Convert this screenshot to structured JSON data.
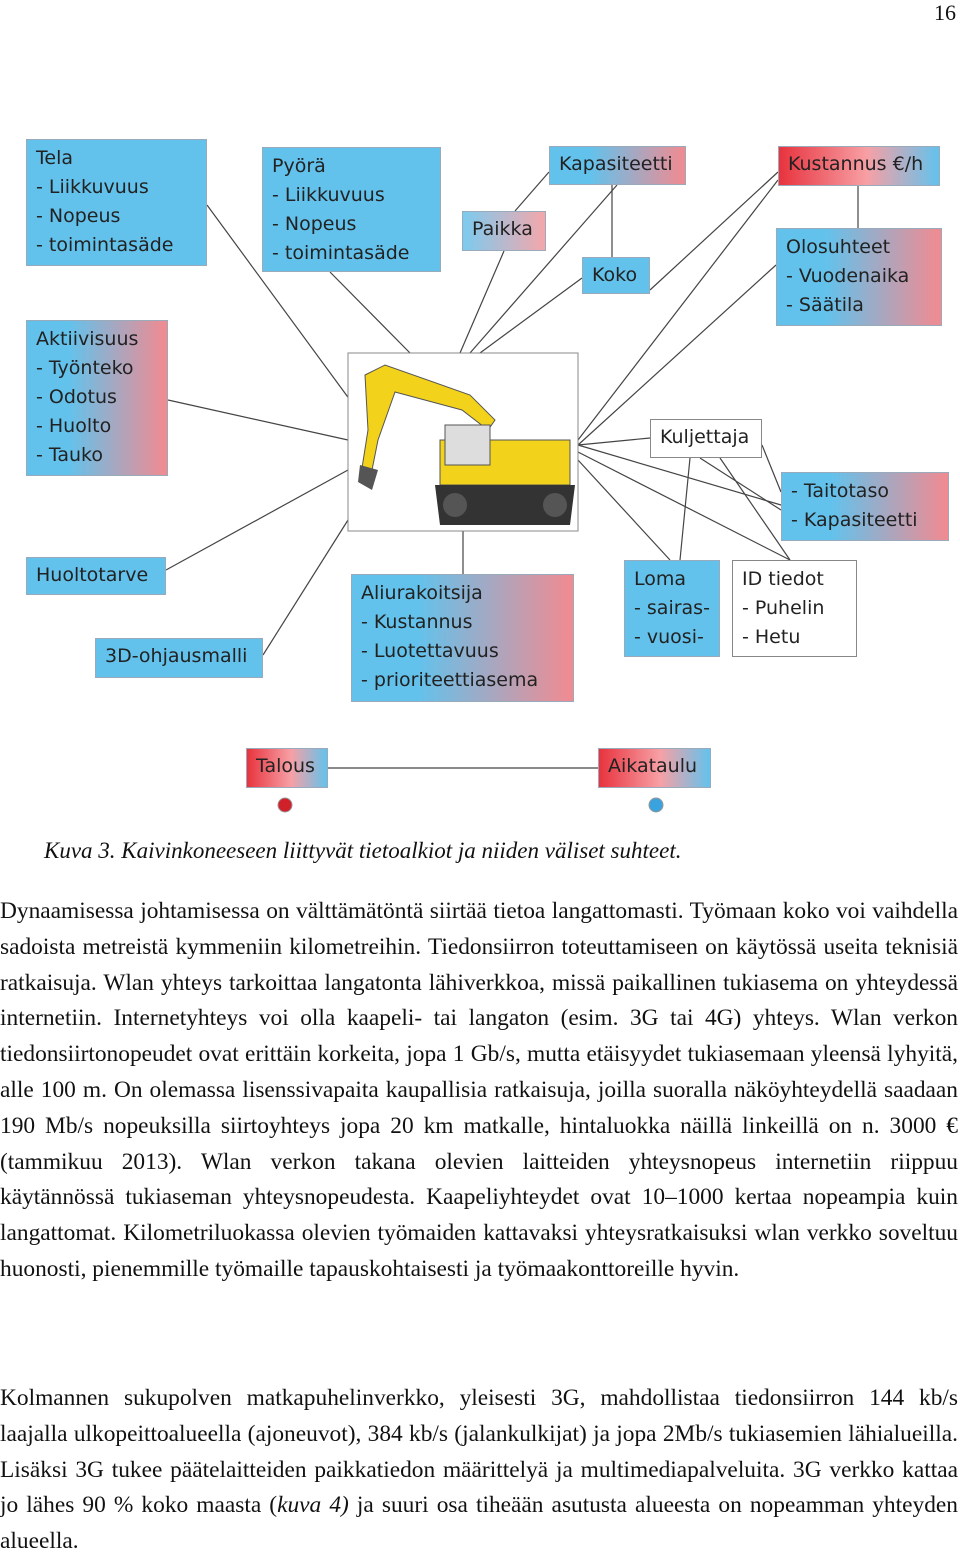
{
  "page_number": "16",
  "figure": {
    "nodes": [
      {
        "lines": [
          "Tela",
          "- Liikkuvuus",
          "- Nopeus",
          "- toimintasäde"
        ]
      },
      {
        "lines": [
          "Pyörä",
          "- Liikkuvuus",
          "- Nopeus",
          "- toimintasäde"
        ]
      },
      {
        "lines": [
          "Paikka"
        ]
      },
      {
        "lines": [
          "Kapasiteetti"
        ]
      },
      {
        "lines": [
          "Koko"
        ]
      },
      {
        "lines": [
          "Kustannus €/h"
        ]
      },
      {
        "lines": [
          "Olosuhteet",
          "- Vuodenaika",
          "- Säätila"
        ]
      },
      {
        "lines": [
          "Aktiivisuus",
          "- Työnteko",
          "- Odotus",
          "- Huolto",
          "- Tauko"
        ]
      },
      {
        "lines": [
          "Kuljettaja"
        ]
      },
      {
        "lines": [
          "- Taitotaso",
          "- Kapasiteetti"
        ]
      },
      {
        "lines": [
          "Huoltotarve"
        ]
      },
      {
        "lines": [
          "3D-ohjausmalli"
        ]
      },
      {
        "lines": [
          "Aliurakoitsija",
          "- Kustannus",
          "- Luotettavuus",
          "- prioriteettiasema"
        ]
      },
      {
        "lines": [
          "Loma",
          "- sairas-",
          "- vuosi-"
        ]
      },
      {
        "lines": [
          "ID tiedot",
          "- Puhelin",
          "- Hetu"
        ]
      }
    ],
    "legend": [
      {
        "label": "Talous"
      },
      {
        "label": "Aikataulu"
      }
    ],
    "caption": "Kuva 3. Kaivinkoneeseen liittyvät tietoalkiot ja niiden väliset suhteet."
  },
  "paragraphs": [
    {
      "text": "Dynaamisessa johtamisessa on välttämätöntä siirtää tietoa langattomasti. Työmaan koko voi vaihdella sadoista metreistä kymmeniin kilometreihin. Tiedonsiirron toteuttamiseen on käytössä useita teknisiä ratkaisuja. Wlan yhteys tarkoittaa langatonta lähiverkkoa, missä paikallinen tukiasema on yhteydessä internetiin. Internetyhteys voi olla kaapeli- tai langaton (esim. 3G tai 4G) yhteys. Wlan verkon tiedonsiirtonopeudet ovat erittäin korkeita, jopa 1 Gb/s, mutta etäisyydet tukiasemaan yleensä lyhyitä, alle 100 m. On olemassa lisenssivapaita kaupallisia ratkaisuja, joilla suoralla näköyhteydellä saadaan 190 Mb/s nopeuksilla siirtoyhteys jopa 20 km matkalle, hintaluokka näillä linkeillä on n. 3000 € (tammikuu 2013). Wlan verkon takana olevien laitteiden yhteysnopeus internetiin riippuu käytännössä tukiaseman yhteysnopeudesta. Kaapeliyhteydet ovat 10–1000 kertaa nopeampia kuin langattomat. Kilometriluokassa olevien työmaiden kattavaksi yhteysratkaisuksi wlan verkko soveltuu huonosti, pienemmille työmaille tapauskohtaisesti ja työmaakonttoreille hyvin."
    },
    {
      "before": "Kolmannen sukupolven matkapuhelinverkko, yleisesti 3G, mahdollistaa tiedonsiirron 144 kb/s laajalla ulkopeittoalueella (ajoneuvot), 384 kb/s (jalankulkijat) ja jopa 2Mb/s tukiasemien lähialueilla. Lisäksi 3G tukee päätelaitteiden paikkatiedon määrittelyä ja multimediapalveluita. 3G verkko kattaa jo lähes 90 % koko maasta (",
      "emphasis": "kuva 4)",
      "after": " ja suuri osa tiheään asutusta alueesta on nopeamman yhteyden alueella."
    }
  ]
}
